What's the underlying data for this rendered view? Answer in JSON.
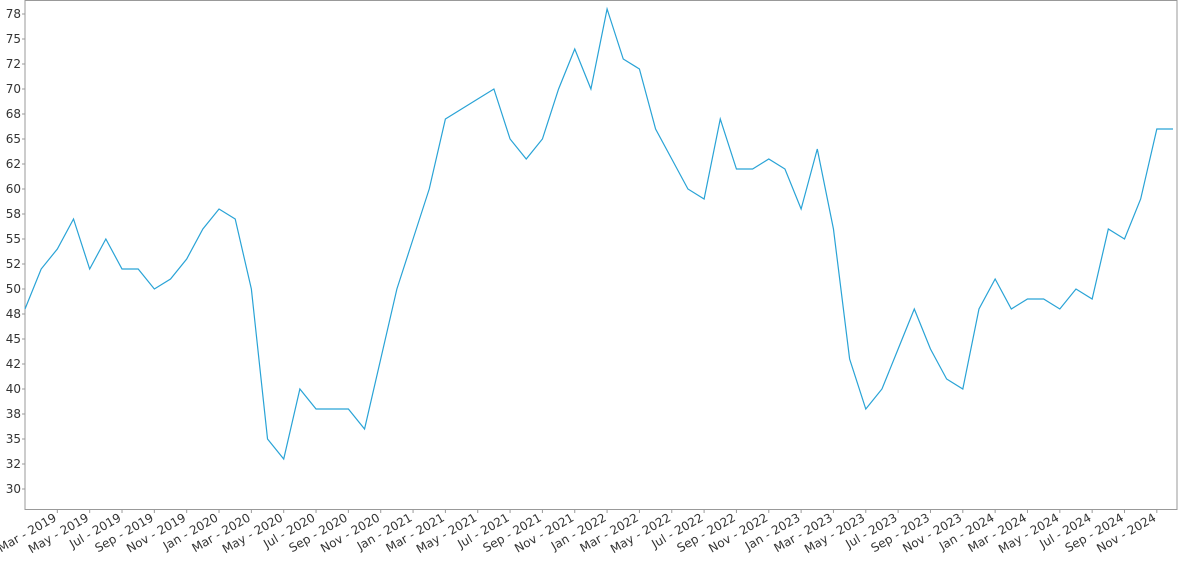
{
  "chart_data": {
    "type": "line",
    "x": [
      "2019-01",
      "2019-02",
      "2019-03",
      "2019-04",
      "2019-05",
      "2019-06",
      "2019-07",
      "2019-08",
      "2019-09",
      "2019-10",
      "2019-11",
      "2019-12",
      "2020-01",
      "2020-02",
      "2020-03",
      "2020-04",
      "2020-05",
      "2020-06",
      "2020-07",
      "2020-08",
      "2020-09",
      "2020-10",
      "2020-11",
      "2020-12",
      "2021-01",
      "2021-02",
      "2021-03",
      "2021-04",
      "2021-05",
      "2021-06",
      "2021-07",
      "2021-08",
      "2021-09",
      "2021-10",
      "2021-11",
      "2021-12",
      "2022-01",
      "2022-02",
      "2022-03",
      "2022-04",
      "2022-05",
      "2022-06",
      "2022-07",
      "2022-08",
      "2022-09",
      "2022-10",
      "2022-11",
      "2022-12",
      "2023-01",
      "2023-02",
      "2023-03",
      "2023-04",
      "2023-05",
      "2023-06",
      "2023-07",
      "2023-08",
      "2023-09",
      "2023-10",
      "2023-11",
      "2023-12",
      "2024-01",
      "2024-02",
      "2024-03",
      "2024-04",
      "2024-05",
      "2024-06",
      "2024-07",
      "2024-08",
      "2024-09",
      "2024-10",
      "2024-11",
      "2024-12"
    ],
    "values": [
      48,
      52,
      54,
      57,
      52,
      55,
      52,
      52,
      50,
      51,
      53,
      56,
      58,
      57,
      50,
      35,
      33,
      40,
      38,
      38,
      38,
      36,
      43,
      50,
      55,
      60,
      67,
      68,
      69,
      70,
      65,
      63,
      65,
      70,
      74,
      70,
      78,
      73,
      72,
      66,
      63,
      60,
      59,
      67,
      62,
      62,
      63,
      62,
      58,
      64,
      56,
      43,
      38,
      40,
      44,
      48,
      44,
      41,
      40,
      48,
      51,
      48,
      49,
      49,
      48,
      50,
      49,
      56,
      55,
      59,
      66,
      66
    ],
    "color": "#29a3d6",
    "xlim": [
      "2019-01",
      "2024-12"
    ],
    "xticks": [
      {
        "value": "2019-03",
        "label": "Mar - 2019"
      },
      {
        "value": "2019-05",
        "label": "May - 2019"
      },
      {
        "value": "2019-07",
        "label": "Jul - 2019"
      },
      {
        "value": "2019-09",
        "label": "Sep - 2019"
      },
      {
        "value": "2019-11",
        "label": "Nov - 2019"
      },
      {
        "value": "2020-01",
        "label": "Jan - 2020"
      },
      {
        "value": "2020-03",
        "label": "Mar - 2020"
      },
      {
        "value": "2020-05",
        "label": "May - 2020"
      },
      {
        "value": "2020-07",
        "label": "Jul - 2020"
      },
      {
        "value": "2020-09",
        "label": "Sep - 2020"
      },
      {
        "value": "2020-11",
        "label": "Nov - 2020"
      },
      {
        "value": "2021-01",
        "label": "Jan - 2021"
      },
      {
        "value": "2021-03",
        "label": "Mar - 2021"
      },
      {
        "value": "2021-05",
        "label": "May - 2021"
      },
      {
        "value": "2021-07",
        "label": "Jul - 2021"
      },
      {
        "value": "2021-09",
        "label": "Sep - 2021"
      },
      {
        "value": "2021-11",
        "label": "Nov - 2021"
      },
      {
        "value": "2022-01",
        "label": "Jan - 2022"
      },
      {
        "value": "2022-03",
        "label": "Mar - 2022"
      },
      {
        "value": "2022-05",
        "label": "May - 2022"
      },
      {
        "value": "2022-07",
        "label": "Jul - 2022"
      },
      {
        "value": "2022-09",
        "label": "Sep - 2022"
      },
      {
        "value": "2022-11",
        "label": "Nov - 2022"
      },
      {
        "value": "2023-01",
        "label": "Jan - 2023"
      },
      {
        "value": "2023-03",
        "label": "Mar - 2023"
      },
      {
        "value": "2023-05",
        "label": "May - 2023"
      },
      {
        "value": "2023-07",
        "label": "Jul - 2023"
      },
      {
        "value": "2023-09",
        "label": "Sep - 2023"
      },
      {
        "value": "2023-11",
        "label": "Nov - 2023"
      },
      {
        "value": "2024-01",
        "label": "Jan - 2024"
      },
      {
        "value": "2024-03",
        "label": "Mar - 2024"
      },
      {
        "value": "2024-05",
        "label": "May - 2024"
      },
      {
        "value": "2024-07",
        "label": "Jul - 2024"
      },
      {
        "value": "2024-09",
        "label": "Sep - 2024"
      },
      {
        "value": "2024-11",
        "label": "Nov - 2024"
      }
    ],
    "ylim": [
      27.9,
      78.9
    ],
    "yticks": [
      30,
      {
        "value": 32.5,
        "label": "32"
      },
      35,
      {
        "value": 37.5,
        "label": "38"
      },
      40,
      {
        "value": 42.5,
        "label": "42"
      },
      45,
      {
        "value": 47.5,
        "label": "48"
      },
      50,
      {
        "value": 52.5,
        "label": "52"
      },
      55,
      {
        "value": 57.5,
        "label": "58"
      },
      60,
      {
        "value": 62.5,
        "label": "62"
      },
      65,
      {
        "value": 67.5,
        "label": "68"
      },
      70,
      {
        "value": 72.5,
        "label": "72"
      },
      75,
      {
        "value": 77.5,
        "label": "78"
      }
    ]
  }
}
